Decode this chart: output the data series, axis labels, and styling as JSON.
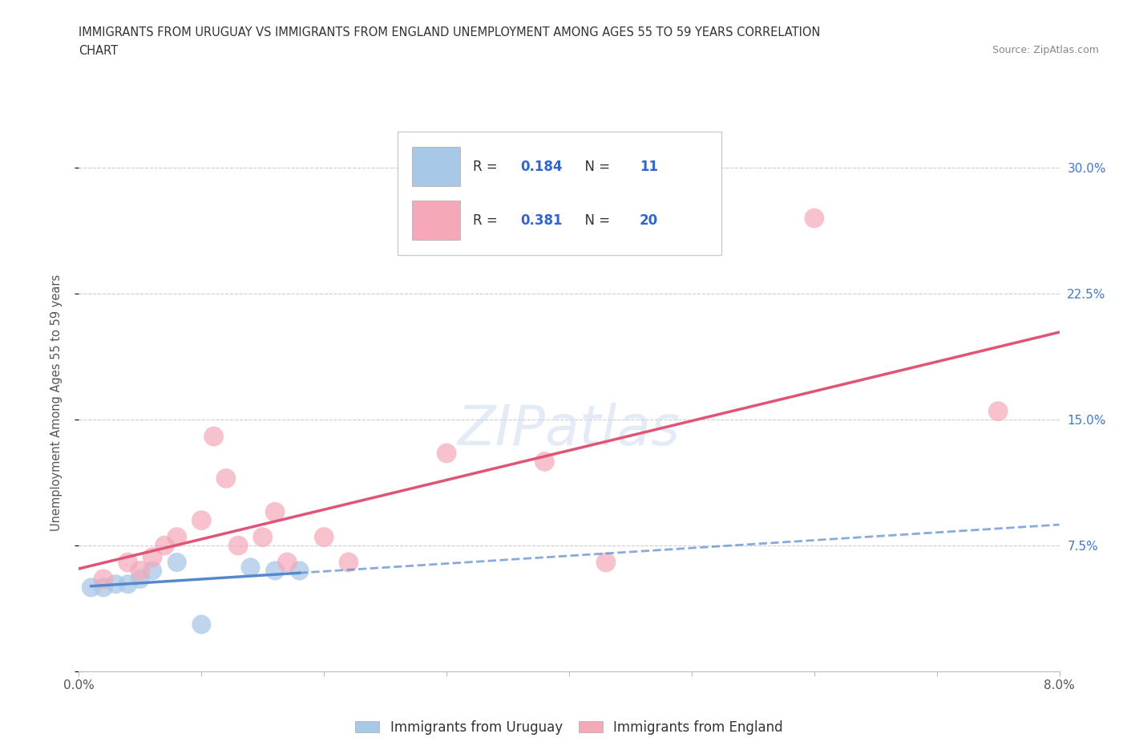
{
  "title_line1": "IMMIGRANTS FROM URUGUAY VS IMMIGRANTS FROM ENGLAND UNEMPLOYMENT AMONG AGES 55 TO 59 YEARS CORRELATION",
  "title_line2": "CHART",
  "source": "Source: ZipAtlas.com",
  "ylabel": "Unemployment Among Ages 55 to 59 years",
  "xlim": [
    0.0,
    0.08
  ],
  "ylim": [
    0.0,
    0.32
  ],
  "ytick_positions": [
    0.0,
    0.075,
    0.15,
    0.225,
    0.3
  ],
  "ytick_labels_right": [
    "",
    "7.5%",
    "15.0%",
    "22.5%",
    "30.0%"
  ],
  "grid_color": "#cccccc",
  "background_color": "#ffffff",
  "uruguay_color": "#a8c8e8",
  "england_color": "#f4a8b8",
  "uruguay_line_color": "#5588cc",
  "england_line_color": "#e05575",
  "uruguay_R": 0.184,
  "uruguay_N": 11,
  "england_R": 0.381,
  "england_N": 20,
  "legend_label1": "Immigrants from Uruguay",
  "legend_label2": "Immigrants from England",
  "watermark": "ZIPatlas",
  "uruguay_pts_x": [
    0.001,
    0.002,
    0.003,
    0.004,
    0.005,
    0.006,
    0.008,
    0.01,
    0.014,
    0.016,
    0.018
  ],
  "uruguay_pts_y": [
    0.05,
    0.05,
    0.052,
    0.052,
    0.055,
    0.06,
    0.065,
    0.028,
    0.062,
    0.06,
    0.06
  ],
  "england_pts_x": [
    0.002,
    0.004,
    0.005,
    0.006,
    0.007,
    0.008,
    0.01,
    0.011,
    0.012,
    0.013,
    0.015,
    0.016,
    0.017,
    0.02,
    0.022,
    0.03,
    0.038,
    0.043,
    0.06,
    0.075
  ],
  "england_pts_y": [
    0.055,
    0.065,
    0.06,
    0.068,
    0.075,
    0.08,
    0.09,
    0.14,
    0.115,
    0.075,
    0.08,
    0.095,
    0.065,
    0.08,
    0.065,
    0.13,
    0.125,
    0.065,
    0.27,
    0.155
  ]
}
